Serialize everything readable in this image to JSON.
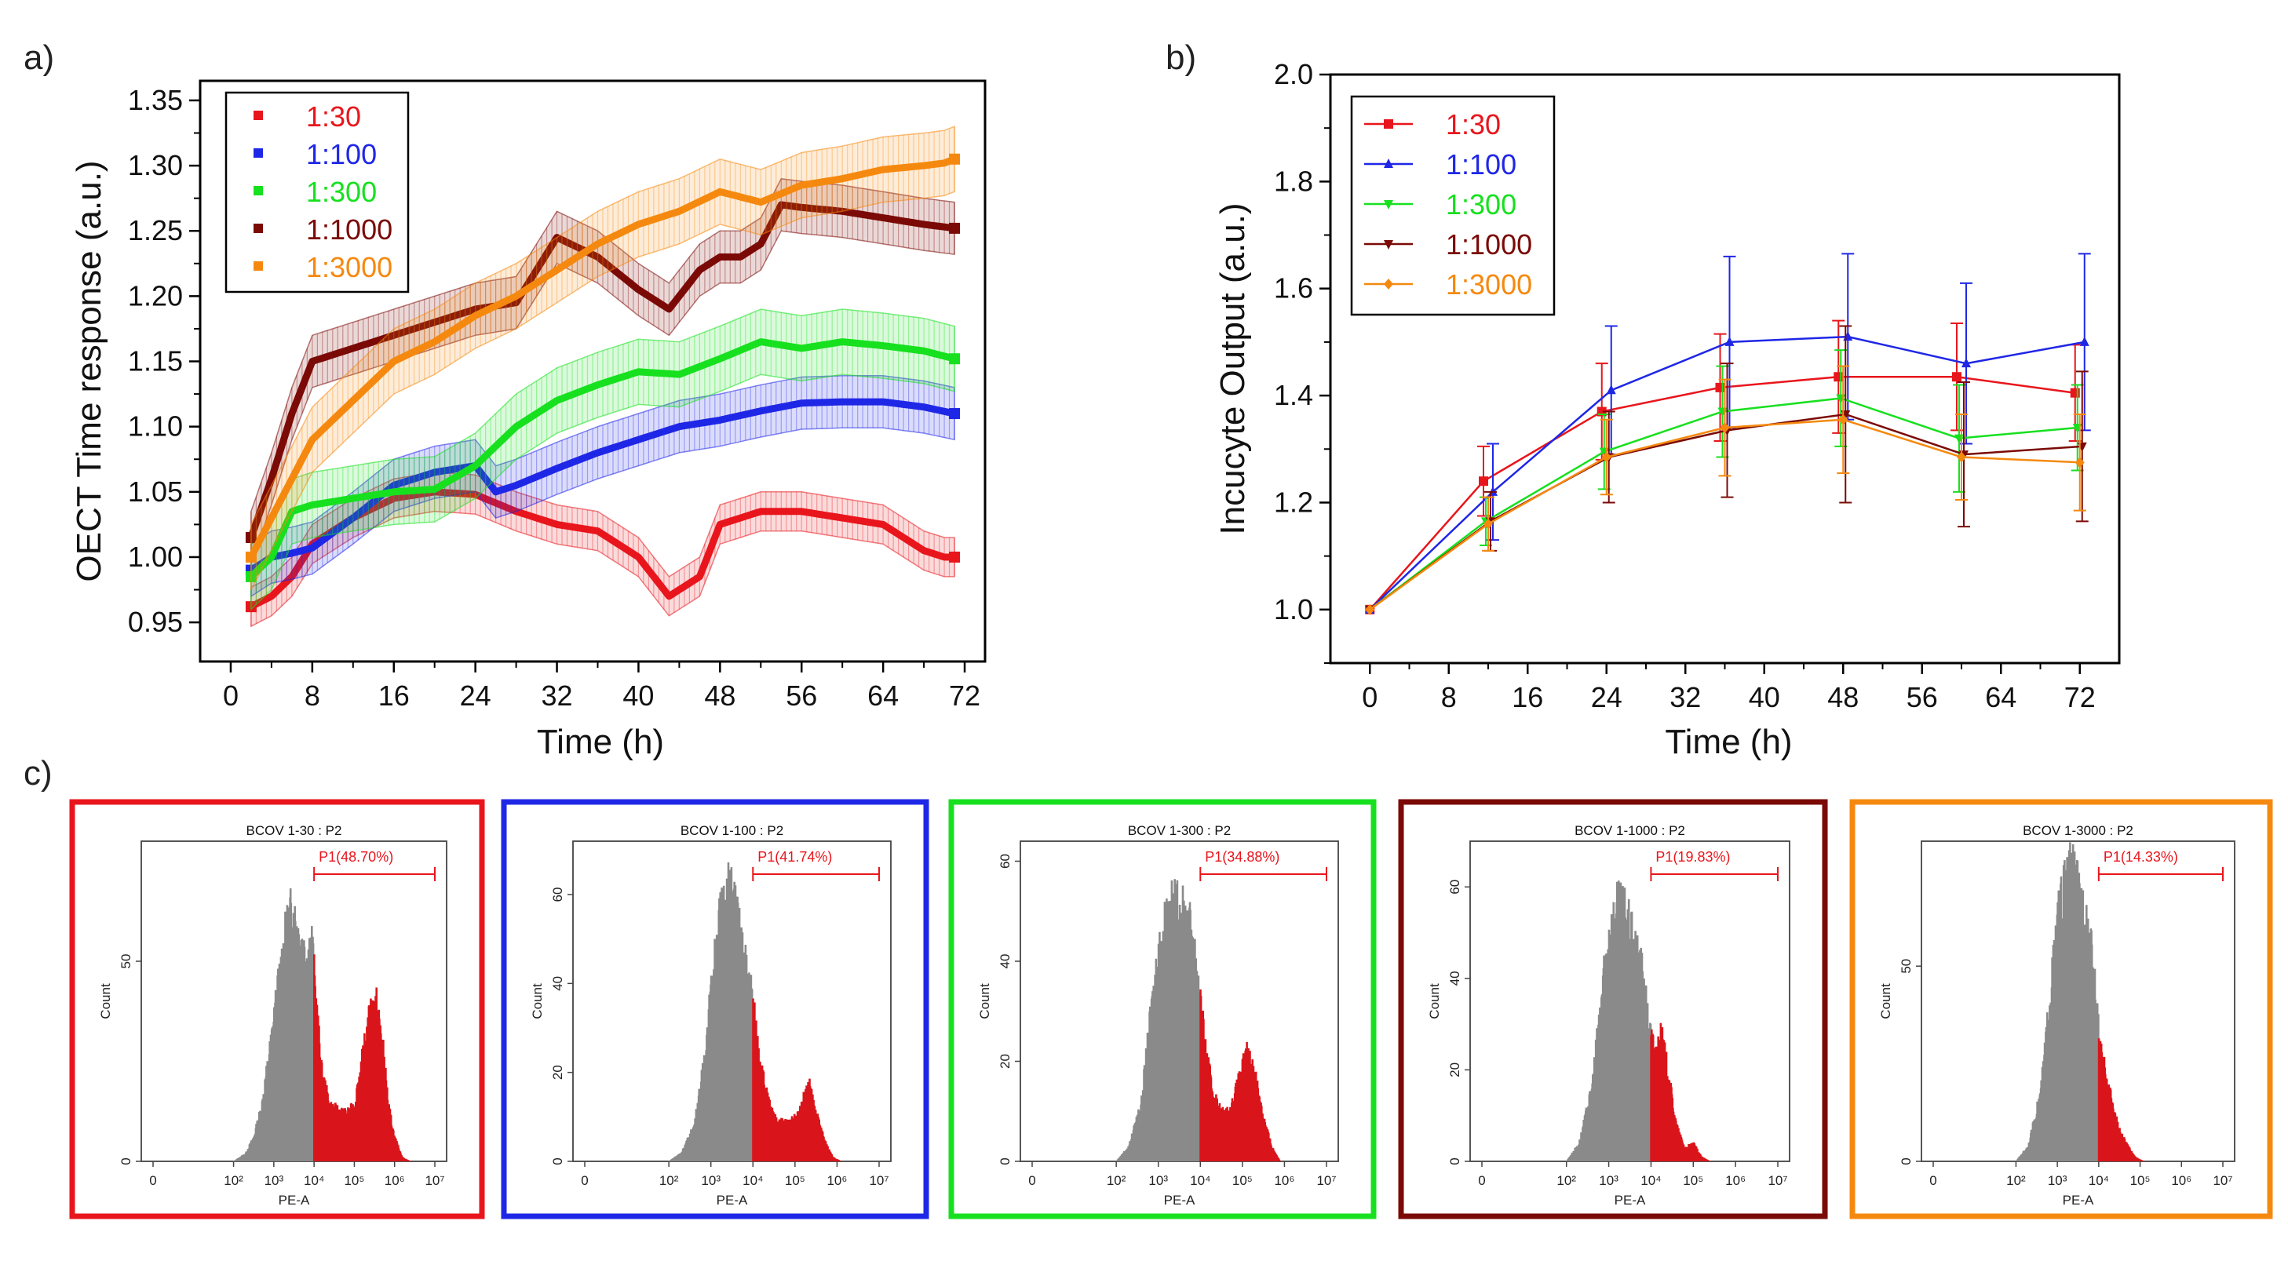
{
  "colors": {
    "1:30": "#e8161c",
    "1:100": "#1f27e6",
    "1:300": "#17e01f",
    "1:1000": "#7b0a06",
    "1:3000": "#f5890f",
    "gray_hist": "#8a8a8a",
    "red_hist": "#d9151b",
    "gate": "#e8161c"
  },
  "panels": {
    "a": {
      "label": "a)"
    },
    "b": {
      "label": "b)"
    },
    "c": {
      "label": "c)"
    }
  },
  "chart_data": [
    {
      "id": "a",
      "type": "line",
      "title": "",
      "xlabel": "Time (h)",
      "ylabel": "OECT Time response (a.u.)",
      "xlim": [
        -3,
        74
      ],
      "ylim": [
        0.92,
        1.365
      ],
      "xticks": [
        0,
        8,
        16,
        24,
        32,
        40,
        48,
        56,
        64,
        72
      ],
      "yticks": [
        0.95,
        1.0,
        1.05,
        1.1,
        1.15,
        1.2,
        1.25,
        1.3,
        1.35
      ],
      "ytick_labels": [
        "0.95",
        "1.00",
        "1.05",
        "1.10",
        "1.15",
        "1.20",
        "1.25",
        "1.30",
        "1.35"
      ],
      "legend": {
        "position": "top-left",
        "entries": [
          "1:30",
          "1:100",
          "1:300",
          "1:1000",
          "1:3000"
        ]
      },
      "series": [
        {
          "name": "1:30",
          "band": 0.015,
          "x": [
            2,
            4,
            6,
            8,
            12,
            16,
            20,
            24,
            28,
            32,
            36,
            40,
            43,
            46,
            48,
            52,
            56,
            60,
            64,
            68,
            70,
            71
          ],
          "y": [
            0.962,
            0.97,
            0.985,
            1.01,
            1.03,
            1.045,
            1.05,
            1.048,
            1.035,
            1.025,
            1.02,
            1.0,
            0.97,
            0.985,
            1.025,
            1.035,
            1.035,
            1.03,
            1.025,
            1.005,
            1.0,
            1.0
          ]
        },
        {
          "name": "1:100",
          "band": 0.02,
          "x": [
            2,
            4,
            6,
            8,
            12,
            16,
            20,
            24,
            26,
            28,
            32,
            36,
            40,
            44,
            48,
            52,
            56,
            60,
            64,
            68,
            71
          ],
          "y": [
            0.99,
            1.0,
            1.003,
            1.007,
            1.03,
            1.055,
            1.065,
            1.07,
            1.05,
            1.055,
            1.068,
            1.08,
            1.09,
            1.1,
            1.105,
            1.112,
            1.118,
            1.119,
            1.119,
            1.115,
            1.11
          ]
        },
        {
          "name": "1:300",
          "band": 0.025,
          "x": [
            2,
            4,
            6,
            8,
            12,
            16,
            20,
            24,
            28,
            32,
            36,
            40,
            44,
            48,
            52,
            56,
            60,
            64,
            68,
            71
          ],
          "y": [
            0.985,
            1.0,
            1.035,
            1.04,
            1.045,
            1.05,
            1.052,
            1.07,
            1.1,
            1.12,
            1.132,
            1.142,
            1.14,
            1.152,
            1.165,
            1.16,
            1.165,
            1.162,
            1.158,
            1.152
          ]
        },
        {
          "name": "1:1000",
          "band": 0.02,
          "x": [
            2,
            4,
            6,
            8,
            12,
            16,
            20,
            24,
            28,
            30,
            32,
            36,
            40,
            43,
            46,
            48,
            50,
            52,
            54,
            56,
            60,
            64,
            68,
            71
          ],
          "y": [
            1.015,
            1.06,
            1.11,
            1.15,
            1.16,
            1.17,
            1.18,
            1.19,
            1.195,
            1.22,
            1.245,
            1.23,
            1.205,
            1.19,
            1.22,
            1.23,
            1.23,
            1.24,
            1.27,
            1.268,
            1.265,
            1.26,
            1.255,
            1.252
          ]
        },
        {
          "name": "1:3000",
          "band": 0.025,
          "x": [
            2,
            4,
            6,
            8,
            12,
            16,
            20,
            24,
            28,
            32,
            36,
            40,
            44,
            48,
            52,
            56,
            60,
            64,
            68,
            70,
            71
          ],
          "y": [
            1.0,
            1.03,
            1.06,
            1.09,
            1.12,
            1.15,
            1.165,
            1.185,
            1.2,
            1.22,
            1.24,
            1.255,
            1.265,
            1.28,
            1.272,
            1.285,
            1.29,
            1.297,
            1.3,
            1.302,
            1.305
          ]
        }
      ]
    },
    {
      "id": "b",
      "type": "line",
      "title": "",
      "xlabel": "Time (h)",
      "ylabel": "Incucyte Output (a.u.)",
      "xlim": [
        -4,
        76
      ],
      "ylim": [
        0.9,
        2.0
      ],
      "xticks": [
        0,
        8,
        16,
        24,
        32,
        40,
        48,
        56,
        64,
        72
      ],
      "yticks": [
        1.0,
        1.2,
        1.4,
        1.6,
        1.8,
        2.0
      ],
      "ytick_labels": [
        "1.0",
        "1.2",
        "1.4",
        "1.6",
        "1.8",
        "2.0"
      ],
      "legend": {
        "position": "top-left",
        "entries": [
          "1:30",
          "1:100",
          "1:300",
          "1:1000",
          "1:3000"
        ]
      },
      "x": [
        0,
        12,
        24,
        36,
        48,
        60,
        72
      ],
      "series": [
        {
          "name": "1:30",
          "marker": "square",
          "values": [
            1.0,
            1.24,
            1.37,
            1.415,
            1.435,
            1.435,
            1.405
          ],
          "err": [
            0,
            0.065,
            0.09,
            0.1,
            0.105,
            0.1,
            0.09
          ]
        },
        {
          "name": "1:100",
          "marker": "triangle-up",
          "values": [
            1.0,
            1.22,
            1.41,
            1.5,
            1.51,
            1.46,
            1.5
          ],
          "err": [
            0,
            0.09,
            0.12,
            0.16,
            0.155,
            0.15,
            0.165
          ]
        },
        {
          "name": "1:300",
          "marker": "triangle-down",
          "values": [
            1.0,
            1.165,
            1.295,
            1.37,
            1.395,
            1.32,
            1.34
          ],
          "err": [
            0,
            0.045,
            0.07,
            0.085,
            0.09,
            0.1,
            0.08
          ]
        },
        {
          "name": "1:1000",
          "marker": "triangle-down",
          "values": [
            1.0,
            1.165,
            1.285,
            1.335,
            1.365,
            1.29,
            1.305
          ],
          "err": [
            0,
            0.055,
            0.085,
            0.125,
            0.165,
            0.135,
            0.14
          ]
        },
        {
          "name": "1:3000",
          "marker": "diamond",
          "values": [
            1.0,
            1.16,
            1.285,
            1.34,
            1.355,
            1.285,
            1.275
          ],
          "err": [
            0,
            0.05,
            0.07,
            0.09,
            0.1,
            0.08,
            0.09
          ]
        }
      ]
    },
    {
      "id": "c",
      "type": "histogram",
      "xlabel": "PE-A",
      "ylabel": "Count",
      "x_scale": "log",
      "gate_start": 10000,
      "gate_end": 10000000,
      "xtick_labels": [
        "0",
        "10²",
        "10³",
        "10⁴",
        "10⁵",
        "10⁶",
        "10⁷"
      ],
      "plots": [
        {
          "sample": "1:30",
          "title": "BCOV 1-30 : P2",
          "gate": "P1(48.70%)",
          "ymax": 80,
          "yticks": [
            50
          ],
          "profile": [
            [
              2.0,
              0
            ],
            [
              2.3,
              2
            ],
            [
              2.5,
              6
            ],
            [
              2.7,
              14
            ],
            [
              2.9,
              28
            ],
            [
              3.1,
              44
            ],
            [
              3.3,
              58
            ],
            [
              3.45,
              64
            ],
            [
              3.6,
              58
            ],
            [
              3.8,
              52
            ],
            [
              3.95,
              56
            ],
            [
              4.05,
              40
            ],
            [
              4.2,
              22
            ],
            [
              4.4,
              14
            ],
            [
              4.6,
              13
            ],
            [
              4.8,
              12
            ],
            [
              5.0,
              14
            ],
            [
              5.2,
              26
            ],
            [
              5.4,
              38
            ],
            [
              5.55,
              40
            ],
            [
              5.7,
              30
            ],
            [
              5.85,
              14
            ],
            [
              6.0,
              6
            ],
            [
              6.2,
              1
            ],
            [
              6.4,
              0
            ]
          ]
        },
        {
          "sample": "1:100",
          "title": "BCOV 1-100 : P2",
          "gate": "P1(41.74%)",
          "ymax": 72,
          "yticks": [
            20,
            40,
            60
          ],
          "profile": [
            [
              2.0,
              0
            ],
            [
              2.3,
              2
            ],
            [
              2.6,
              8
            ],
            [
              2.8,
              20
            ],
            [
              3.0,
              38
            ],
            [
              3.2,
              55
            ],
            [
              3.4,
              62
            ],
            [
              3.55,
              60
            ],
            [
              3.75,
              48
            ],
            [
              3.95,
              40
            ],
            [
              4.1,
              28
            ],
            [
              4.3,
              16
            ],
            [
              4.5,
              10
            ],
            [
              4.7,
              9
            ],
            [
              4.9,
              9
            ],
            [
              5.1,
              11
            ],
            [
              5.25,
              16
            ],
            [
              5.35,
              17
            ],
            [
              5.5,
              11
            ],
            [
              5.7,
              5
            ],
            [
              5.9,
              1
            ],
            [
              6.1,
              0
            ]
          ]
        },
        {
          "sample": "1:300",
          "title": "BCOV 1-300 : P2",
          "gate": "P1(34.88%)",
          "ymax": 64,
          "yticks": [
            20,
            40,
            60
          ],
          "profile": [
            [
              2.0,
              0
            ],
            [
              2.3,
              3
            ],
            [
              2.6,
              12
            ],
            [
              2.8,
              28
            ],
            [
              3.0,
              42
            ],
            [
              3.2,
              50
            ],
            [
              3.4,
              52
            ],
            [
              3.6,
              50
            ],
            [
              3.8,
              47
            ],
            [
              3.95,
              38
            ],
            [
              4.1,
              24
            ],
            [
              4.3,
              14
            ],
            [
              4.5,
              10
            ],
            [
              4.7,
              10
            ],
            [
              4.9,
              16
            ],
            [
              5.1,
              22
            ],
            [
              5.3,
              18
            ],
            [
              5.5,
              9
            ],
            [
              5.7,
              3
            ],
            [
              5.9,
              0
            ]
          ]
        },
        {
          "sample": "1:1000",
          "title": "BCOV 1-1000 : P2",
          "gate": "P1(19.83%)",
          "ymax": 70,
          "yticks": [
            20,
            40,
            60
          ],
          "profile": [
            [
              2.0,
              0
            ],
            [
              2.3,
              4
            ],
            [
              2.6,
              16
            ],
            [
              2.8,
              34
            ],
            [
              3.0,
              50
            ],
            [
              3.2,
              56
            ],
            [
              3.4,
              55
            ],
            [
              3.6,
              48
            ],
            [
              3.8,
              42
            ],
            [
              3.95,
              30
            ],
            [
              4.1,
              24
            ],
            [
              4.25,
              28
            ],
            [
              4.4,
              20
            ],
            [
              4.6,
              8
            ],
            [
              4.8,
              3
            ],
            [
              5.0,
              4
            ],
            [
              5.2,
              1
            ],
            [
              5.4,
              0
            ]
          ]
        },
        {
          "sample": "1:3000",
          "title": "BCOV 1-3000 : P2",
          "gate": "P1(14.33%)",
          "ymax": 82,
          "yticks": [
            50
          ],
          "profile": [
            [
              2.0,
              0
            ],
            [
              2.3,
              4
            ],
            [
              2.6,
              18
            ],
            [
              2.8,
              40
            ],
            [
              3.0,
              62
            ],
            [
              3.2,
              72
            ],
            [
              3.35,
              76
            ],
            [
              3.5,
              70
            ],
            [
              3.7,
              64
            ],
            [
              3.85,
              52
            ],
            [
              3.95,
              40
            ],
            [
              4.05,
              28
            ],
            [
              4.2,
              22
            ],
            [
              4.35,
              14
            ],
            [
              4.5,
              8
            ],
            [
              4.7,
              4
            ],
            [
              4.9,
              1
            ],
            [
              5.1,
              0
            ]
          ]
        }
      ]
    }
  ]
}
